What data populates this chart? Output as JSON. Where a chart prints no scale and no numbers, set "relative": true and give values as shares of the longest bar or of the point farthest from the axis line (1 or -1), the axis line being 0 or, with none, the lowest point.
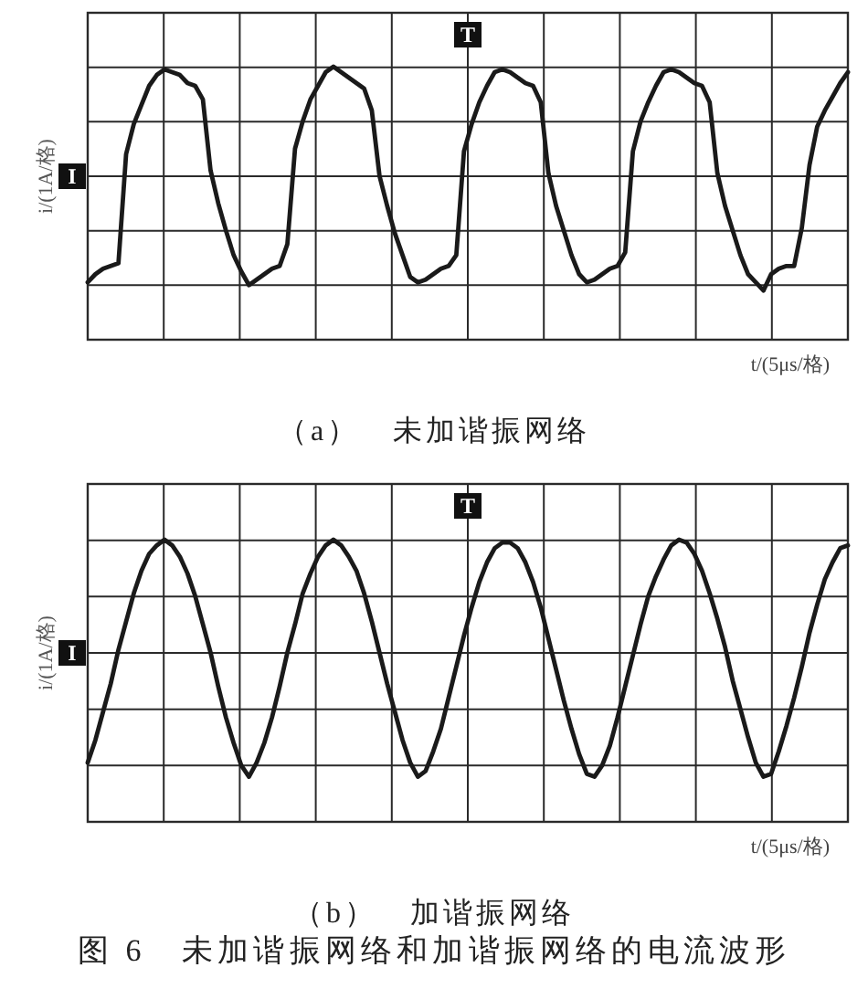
{
  "chart_data": [
    {
      "type": "line",
      "title": "（a）　未加谐振网络",
      "xlabel": "t/(5μs/格)",
      "ylabel": "i/(1A/格)",
      "relative": true,
      "grid": true,
      "color": "#1a1a1a",
      "annotations": [
        "T",
        "I"
      ],
      "categories": [
        null,
        null,
        null,
        null,
        null,
        null,
        null,
        null,
        null,
        null,
        null,
        null,
        null,
        null,
        null,
        null,
        null,
        null,
        null,
        null,
        null,
        null,
        null,
        null,
        null,
        null,
        null,
        null,
        null,
        null,
        null,
        null,
        null,
        null,
        null,
        null,
        null,
        null,
        null,
        null,
        null,
        null,
        null,
        null,
        null,
        null,
        null,
        null,
        null,
        null,
        null,
        null,
        null,
        null,
        null,
        null,
        null,
        null,
        null,
        null,
        null,
        null,
        null,
        null,
        null,
        null,
        null,
        null,
        null,
        null,
        null,
        null,
        null,
        null,
        null,
        null,
        null,
        null,
        null,
        null,
        null,
        null,
        null,
        null,
        null,
        null,
        null,
        null,
        null,
        null,
        null,
        null,
        null,
        null,
        null,
        null,
        null,
        null,
        null,
        null
      ],
      "values": [
        0.21,
        0.24,
        0.26,
        0.27,
        0.28,
        0.68,
        0.79,
        0.86,
        0.93,
        0.97,
        0.99,
        0.98,
        0.97,
        0.94,
        0.93,
        0.88,
        0.62,
        0.5,
        0.4,
        0.31,
        0.25,
        0.2,
        0.22,
        0.24,
        0.26,
        0.27,
        0.35,
        0.7,
        0.8,
        0.88,
        0.93,
        0.98,
        1,
        0.98,
        0.96,
        0.94,
        0.92,
        0.84,
        0.6,
        0.49,
        0.39,
        0.31,
        0.23,
        0.21,
        0.22,
        0.24,
        0.26,
        0.27,
        0.31,
        0.69,
        0.79,
        0.87,
        0.93,
        0.98,
        0.99,
        0.98,
        0.96,
        0.94,
        0.93,
        0.87,
        0.61,
        0.49,
        0.4,
        0.31,
        0.24,
        0.21,
        0.22,
        0.24,
        0.26,
        0.27,
        0.32,
        0.69,
        0.8,
        0.87,
        0.93,
        0.98,
        0.99,
        0.98,
        0.96,
        0.94,
        0.93,
        0.87,
        0.61,
        0.49,
        0.4,
        0.31,
        0.24,
        0.21,
        0.18,
        0.24,
        0.26,
        0.27,
        0.27,
        0.41,
        0.64,
        0.78,
        0.84,
        0.89,
        0.94,
        0.98
      ]
    },
    {
      "type": "line",
      "title": "（b）　加谐振网络",
      "xlabel": "t/(5μs/格)",
      "ylabel": "i/(1A/格)",
      "relative": true,
      "grid": true,
      "color": "#1a1a1a",
      "annotations": [
        "T",
        "I",
        "图 6　未加谐振网络和加谐振网络的电流波形"
      ],
      "categories": [
        null,
        null,
        null,
        null,
        null,
        null,
        null,
        null,
        null,
        null,
        null,
        null,
        null,
        null,
        null,
        null,
        null,
        null,
        null,
        null,
        null,
        null,
        null,
        null,
        null,
        null,
        null,
        null,
        null,
        null,
        null,
        null,
        null,
        null,
        null,
        null,
        null,
        null,
        null,
        null,
        null,
        null,
        null,
        null,
        null,
        null,
        null,
        null,
        null,
        null,
        null,
        null,
        null,
        null,
        null,
        null,
        null,
        null,
        null,
        null,
        null,
        null,
        null,
        null,
        null,
        null,
        null,
        null,
        null,
        null,
        null,
        null,
        null,
        null,
        null,
        null,
        null,
        null,
        null,
        null,
        null,
        null,
        null,
        null,
        null,
        null,
        null,
        null,
        null,
        null,
        null,
        null,
        null,
        null,
        null,
        null,
        null,
        null,
        null,
        null
      ],
      "values": [
        0.21,
        0.29,
        0.39,
        0.49,
        0.61,
        0.71,
        0.81,
        0.89,
        0.95,
        0.98,
        1,
        0.98,
        0.94,
        0.88,
        0.8,
        0.7,
        0.6,
        0.48,
        0.37,
        0.28,
        0.2,
        0.16,
        0.21,
        0.28,
        0.37,
        0.48,
        0.6,
        0.7,
        0.81,
        0.88,
        0.94,
        0.98,
        1,
        0.98,
        0.94,
        0.89,
        0.81,
        0.71,
        0.6,
        0.49,
        0.39,
        0.29,
        0.21,
        0.16,
        0.18,
        0.25,
        0.33,
        0.44,
        0.55,
        0.66,
        0.76,
        0.85,
        0.92,
        0.97,
        0.99,
        0.99,
        0.97,
        0.92,
        0.85,
        0.76,
        0.65,
        0.54,
        0.43,
        0.33,
        0.24,
        0.17,
        0.16,
        0.2,
        0.27,
        0.37,
        0.48,
        0.59,
        0.7,
        0.8,
        0.87,
        0.93,
        0.98,
        1,
        0.99,
        0.95,
        0.89,
        0.81,
        0.72,
        0.62,
        0.5,
        0.4,
        0.3,
        0.21,
        0.16,
        0.17,
        0.25,
        0.34,
        0.44,
        0.55,
        0.67,
        0.77,
        0.86,
        0.92,
        0.97,
        0.98
      ]
    }
  ]
}
